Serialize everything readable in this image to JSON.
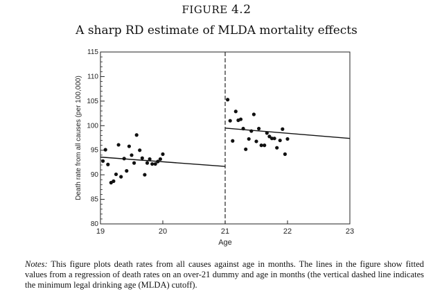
{
  "figure": {
    "label_word": "FIGURE",
    "label_number": "4.2",
    "title": "A sharp RD estimate of MLDA mortality effects",
    "notes_prefix": "Notes:",
    "notes_text": "This figure plots death rates from all causes against age in months. The lines in the figure show fitted values from a regression of death rates on an over-21 dummy and age in months (the vertical dashed line indicates the minimum legal drinking age (MLDA) cutoff)."
  },
  "chart_data": {
    "type": "scatter",
    "xlabel": "Age",
    "ylabel": "Death rate from all causes (per 100,000)",
    "xlim": [
      19,
      23
    ],
    "ylim": [
      80,
      115
    ],
    "xticks": [
      19,
      20,
      21,
      22,
      23
    ],
    "yticks": [
      80,
      85,
      90,
      95,
      100,
      105,
      110,
      115
    ],
    "xtick_labels": [
      "19",
      "20",
      "21",
      "22",
      "23"
    ],
    "ytick_labels": [
      "80",
      "85",
      "90",
      "95",
      "100",
      "105",
      "110",
      "115"
    ],
    "grid": false,
    "cutoff": 21,
    "points": [
      {
        "x": 19.04,
        "y": 92.8
      },
      {
        "x": 19.08,
        "y": 95.1
      },
      {
        "x": 19.12,
        "y": 92.1
      },
      {
        "x": 19.17,
        "y": 88.4
      },
      {
        "x": 19.21,
        "y": 88.7
      },
      {
        "x": 19.25,
        "y": 90.1
      },
      {
        "x": 19.29,
        "y": 96.1
      },
      {
        "x": 19.33,
        "y": 89.6
      },
      {
        "x": 19.38,
        "y": 93.3
      },
      {
        "x": 19.42,
        "y": 90.8
      },
      {
        "x": 19.46,
        "y": 95.8
      },
      {
        "x": 19.5,
        "y": 94.0
      },
      {
        "x": 19.54,
        "y": 92.4
      },
      {
        "x": 19.58,
        "y": 98.1
      },
      {
        "x": 19.63,
        "y": 95.0
      },
      {
        "x": 19.67,
        "y": 93.4
      },
      {
        "x": 19.71,
        "y": 90.0
      },
      {
        "x": 19.75,
        "y": 92.4
      },
      {
        "x": 19.79,
        "y": 93.2
      },
      {
        "x": 19.83,
        "y": 92.2
      },
      {
        "x": 19.88,
        "y": 92.2
      },
      {
        "x": 19.92,
        "y": 92.7
      },
      {
        "x": 19.96,
        "y": 93.2
      },
      {
        "x": 20.0,
        "y": 94.2
      },
      {
        "x": 21.04,
        "y": 105.3
      },
      {
        "x": 21.08,
        "y": 101.0
      },
      {
        "x": 21.12,
        "y": 96.9
      },
      {
        "x": 21.17,
        "y": 102.9
      },
      {
        "x": 21.21,
        "y": 101.1
      },
      {
        "x": 21.25,
        "y": 101.3
      },
      {
        "x": 21.29,
        "y": 99.4
      },
      {
        "x": 21.33,
        "y": 95.2
      },
      {
        "x": 21.38,
        "y": 97.3
      },
      {
        "x": 21.42,
        "y": 98.9
      },
      {
        "x": 21.46,
        "y": 102.3
      },
      {
        "x": 21.5,
        "y": 96.8
      },
      {
        "x": 21.54,
        "y": 99.4
      },
      {
        "x": 21.58,
        "y": 96.0
      },
      {
        "x": 21.63,
        "y": 96.0
      },
      {
        "x": 21.67,
        "y": 98.5
      },
      {
        "x": 21.71,
        "y": 97.8
      },
      {
        "x": 21.75,
        "y": 97.4
      },
      {
        "x": 21.79,
        "y": 97.4
      },
      {
        "x": 21.83,
        "y": 95.5
      },
      {
        "x": 21.88,
        "y": 97.0
      },
      {
        "x": 21.92,
        "y": 99.3
      },
      {
        "x": 21.96,
        "y": 94.2
      },
      {
        "x": 22.0,
        "y": 97.3
      }
    ],
    "fit_lines": [
      {
        "x": [
          19,
          21
        ],
        "y": [
          93.6,
          91.7
        ]
      },
      {
        "x": [
          21,
          23
        ],
        "y": [
          99.5,
          97.4
        ]
      }
    ]
  }
}
